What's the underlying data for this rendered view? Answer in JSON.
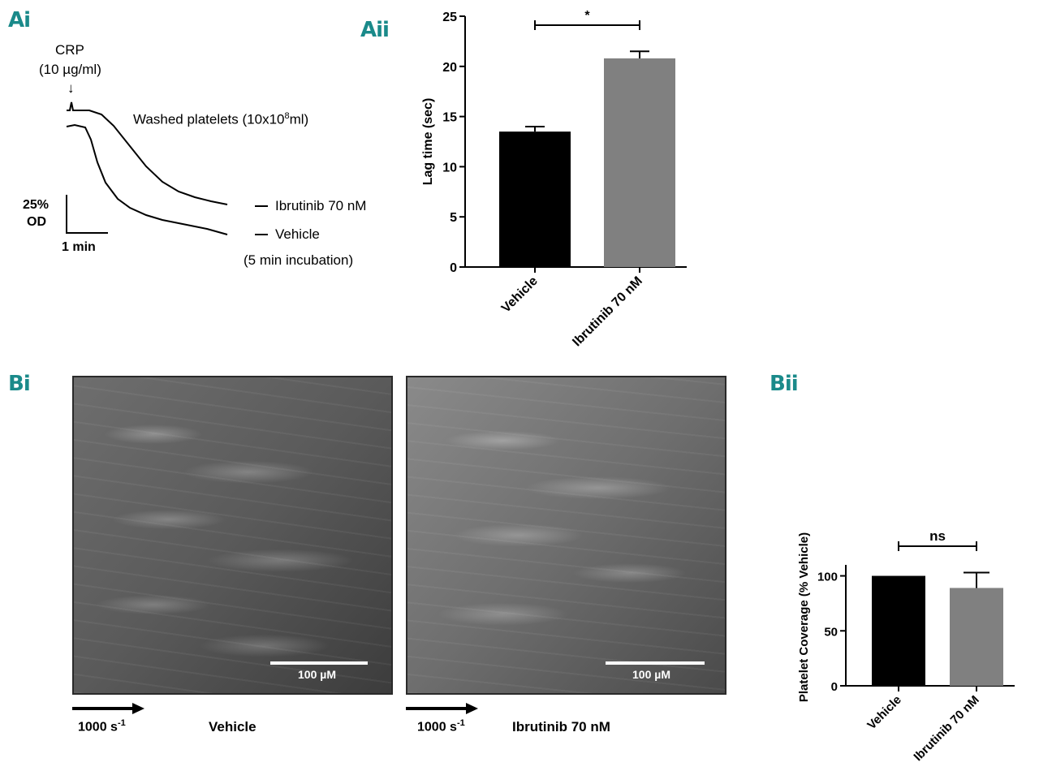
{
  "panels": {
    "ai": "Ai",
    "aii": "Aii",
    "bi": "Bi",
    "bii": "Bii"
  },
  "trace": {
    "stimulus": "CRP",
    "stimulus_dose": "(10 µg/ml)",
    "arrow": "↓",
    "platelets_label": "Washed platelets (10x10",
    "platelets_sup": "8",
    "platelets_suffix": "ml)",
    "legend": [
      {
        "name": "Ibrutinib 70 nM"
      },
      {
        "name": "Vehicle"
      }
    ],
    "incubation": "(5 min incubation)",
    "scale_y_line1": "25%",
    "scale_y_line2": "OD",
    "scale_x": "1 min"
  },
  "flow": {
    "scale_bar": "100 µM",
    "shear_left": "1000 s",
    "shear_left_sup": "-1",
    "shear_right": "1000 s",
    "shear_right_sup": "-1",
    "caption_left": "Vehicle",
    "caption_right": "Ibrutinib 70 nM",
    "image_left_desc": "Vehicle platelet adhesion micrograph",
    "image_right_desc": "Ibrutinib platelet adhesion micrograph"
  },
  "colors": {
    "vehicle": "#000000",
    "ibrutinib": "#808080",
    "panel_label": "#1a8a8a"
  },
  "chart_data": [
    {
      "type": "bar",
      "panel": "Aii",
      "categories": [
        "Vehicle",
        "Ibrutinib 70 nM"
      ],
      "values": [
        13.5,
        20.8
      ],
      "errors": [
        0.5,
        0.7
      ],
      "ylabel": "Lag time (sec)",
      "ylim": [
        0,
        25
      ],
      "yticks": [
        0,
        5,
        10,
        15,
        20,
        25
      ],
      "significance": "*"
    },
    {
      "type": "bar",
      "panel": "Bii",
      "categories": [
        "Vehicle",
        "Ibrutinib 70 nM"
      ],
      "values": [
        100,
        89
      ],
      "errors": [
        0,
        14
      ],
      "ylabel": "Platelet Coverage (% Vehicle)",
      "ylim": [
        0,
        110
      ],
      "yticks": [
        0,
        50,
        100
      ],
      "significance": "ns"
    }
  ]
}
